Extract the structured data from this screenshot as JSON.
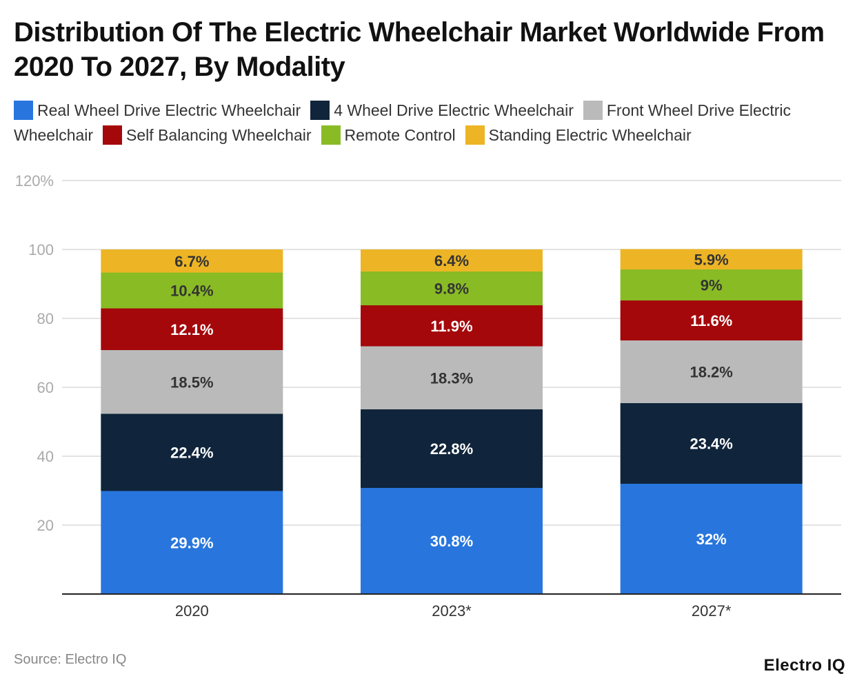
{
  "chart_data": {
    "type": "bar",
    "stacked": true,
    "title": "Distribution Of The Electric Wheelchair Market Worldwide From 2020 To 2027, By Modality",
    "categories": [
      "2020",
      "2023*",
      "2027*"
    ],
    "series": [
      {
        "name": "Real Wheel Drive Electric Wheelchair",
        "color": "#2876dd",
        "values": [
          29.9,
          30.8,
          32
        ],
        "labels": [
          "29.9%",
          "30.8%",
          "32%"
        ]
      },
      {
        "name": "4 Wheel Drive Electric Wheelchair",
        "color": "#10253b",
        "values": [
          22.4,
          22.8,
          23.4
        ],
        "labels": [
          "22.4%",
          "22.8%",
          "23.4%"
        ]
      },
      {
        "name": "Front Wheel Drive Electric Wheelchair",
        "color": "#bababa",
        "values": [
          18.5,
          18.3,
          18.2
        ],
        "labels": [
          "18.5%",
          "18.3%",
          "18.2%"
        ]
      },
      {
        "name": "Self Balancing Wheelchair",
        "color": "#a4080b",
        "values": [
          12.1,
          11.9,
          11.6
        ],
        "labels": [
          "12.1%",
          "11.9%",
          "11.6%"
        ]
      },
      {
        "name": "Remote Control",
        "color": "#89bb25",
        "values": [
          10.4,
          9.8,
          9
        ],
        "labels": [
          "10.4%",
          "9.8%",
          "9%"
        ]
      },
      {
        "name": "Standing Electric Wheelchair",
        "color": "#edb525",
        "values": [
          6.7,
          6.4,
          5.9
        ],
        "labels": [
          "6.7%",
          "6.4%",
          "5.9%"
        ]
      }
    ],
    "yticks": [
      20,
      40,
      60,
      80,
      100,
      120
    ],
    "ytick_labels": [
      "20",
      "40",
      "60",
      "80",
      "100",
      "120%"
    ],
    "ylim": [
      0,
      120
    ],
    "grid": true,
    "legend_placement": "top",
    "xlabel": "",
    "ylabel": ""
  },
  "source": "Source: Electro IQ",
  "logo": "Electro IQ"
}
